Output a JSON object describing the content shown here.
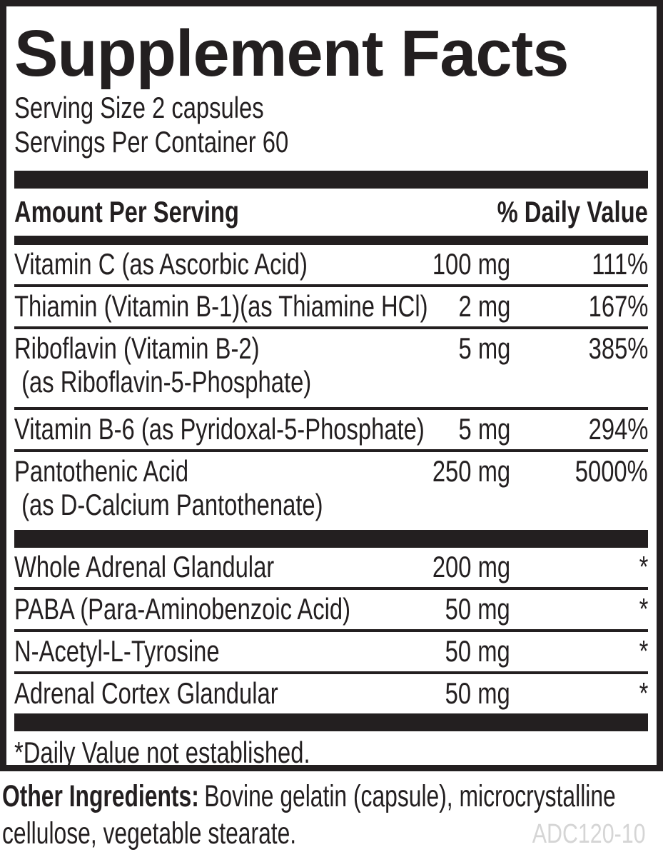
{
  "panel": {
    "title": "Supplement Facts",
    "serving_size": "Serving Size 2 capsules",
    "servings_per_container": "Servings Per Container 60",
    "header": {
      "amount": "Amount Per Serving",
      "daily_value": "% Daily Value"
    },
    "rows_dv": [
      {
        "name": "Vitamin C (as Ascorbic Acid)",
        "amount": "100 mg",
        "dv": "111%"
      },
      {
        "name": "Thiamin (Vitamin B-1)(as Thiamine HCl)",
        "amount": "2 mg",
        "dv": "167%"
      },
      {
        "name": "Riboflavin (Vitamin B-2)",
        "name2": "(as Riboflavin-5-Phosphate)",
        "amount": "5 mg",
        "dv": "385%"
      },
      {
        "name": "Vitamin B-6 (as Pyridoxal-5-Phosphate)",
        "amount": "5 mg",
        "dv": "294%"
      },
      {
        "name": "Pantothenic Acid",
        "name2": "(as D-Calcium Pantothenate)",
        "amount": "250 mg",
        "dv": "5000%"
      }
    ],
    "rows_nodv": [
      {
        "name": "Whole Adrenal Glandular",
        "amount": "200 mg",
        "dv": "*"
      },
      {
        "name": "PABA (Para-Aminobenzoic Acid)",
        "amount": "50 mg",
        "dv": "*"
      },
      {
        "name": "N-Acetyl-L-Tyrosine",
        "amount": "50 mg",
        "dv": "*"
      },
      {
        "name": "Adrenal Cortex Glandular",
        "amount": "50 mg",
        "dv": "*"
      }
    ],
    "footnote": "*Daily Value not established."
  },
  "footer": {
    "other_ingredients_label": "Other Ingredients:",
    "line1_rest": "Bovine gelatin (capsule), microcrystalline",
    "line2": "cellulose, vegetable stearate.",
    "product_code": "ADC120-10"
  },
  "colors": {
    "ink": "#231f20",
    "code_gray": "#d5d5d5",
    "background": "#ffffff"
  }
}
